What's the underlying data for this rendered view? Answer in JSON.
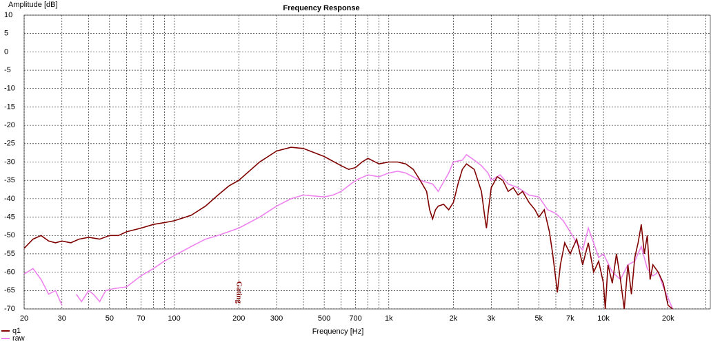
{
  "chart_data": {
    "type": "line",
    "title": "Frequency Response",
    "x_label": "Frequency [Hz]",
    "y_label": "Amplitude [dB]",
    "xscale": "log",
    "xlim": [
      20,
      31700
    ],
    "ylim": [
      -70,
      10
    ],
    "grid": true,
    "xticks": [
      20,
      30,
      50,
      70,
      100,
      200,
      300,
      500,
      700,
      {
        "value": 1000,
        "label": "1k"
      },
      {
        "value": 2000,
        "label": "2k"
      },
      {
        "value": 3000,
        "label": "3k"
      },
      {
        "value": 5000,
        "label": "5k"
      },
      {
        "value": 7000,
        "label": "7k"
      },
      {
        "value": 10000,
        "label": "10k"
      },
      {
        "value": 20000,
        "label": "20k"
      }
    ],
    "xgrid": [
      40,
      60,
      80,
      90,
      400,
      600,
      800,
      900,
      4000,
      6000,
      8000,
      9000,
      30000
    ],
    "yticks": [
      10,
      5,
      0,
      -5,
      -10,
      -15,
      -20,
      -25,
      -30,
      -35,
      -40,
      -45,
      -50,
      -55,
      -60,
      -65,
      -70
    ],
    "annotations": [
      {
        "text": "Gating",
        "x": 200
      }
    ],
    "legend": "bottom-left",
    "series": [
      {
        "name": "q1",
        "color": "#800000",
        "x": [
          20,
          22,
          24,
          26,
          28,
          30,
          33,
          36,
          40,
          45,
          50,
          55,
          60,
          70,
          80,
          90,
          100,
          120,
          140,
          160,
          180,
          200,
          250,
          300,
          350,
          400,
          500,
          600,
          650,
          700,
          750,
          800,
          900,
          1000,
          1100,
          1200,
          1300,
          1400,
          1500,
          1550,
          1600,
          1650,
          1700,
          1800,
          1900,
          2000,
          2100,
          2200,
          2300,
          2500,
          2700,
          2800,
          2850,
          2900,
          3000,
          3200,
          3400,
          3600,
          3800,
          4000,
          4200,
          4500,
          4800,
          5000,
          5300,
          5600,
          5800,
          6000,
          6100,
          6300,
          6600,
          7000,
          7500,
          8000,
          8500,
          9000,
          9500,
          10000,
          10200,
          10500,
          11000,
          11500,
          12000,
          12500,
          13000,
          13500,
          14000,
          14500,
          15000,
          15500,
          16000,
          16500,
          17000,
          18000,
          19000,
          20000,
          21000
        ],
        "values": [
          -53.5,
          -51,
          -50,
          -51.5,
          -52,
          -51.5,
          -52,
          -51,
          -50.5,
          -51,
          -50,
          -50,
          -49,
          -48,
          -47,
          -46.5,
          -46,
          -44.5,
          -42,
          -39,
          -36.5,
          -35,
          -30,
          -27,
          -26,
          -26.3,
          -28.5,
          -31,
          -32,
          -31.5,
          -30,
          -29,
          -30.5,
          -30,
          -30,
          -30.5,
          -32,
          -35,
          -38,
          -43,
          -45.5,
          -43,
          -42,
          -41.5,
          -43,
          -41,
          -36,
          -32,
          -30.5,
          -32,
          -38,
          -45,
          -48,
          -44,
          -37,
          -34,
          -35,
          -38,
          -37,
          -39,
          -38,
          -41,
          -43,
          -45,
          -43,
          -49,
          -55,
          -62,
          -65.5,
          -58,
          -52,
          -55,
          -51,
          -58,
          -52,
          -60,
          -57,
          -63,
          -70,
          -58,
          -63,
          -55,
          -62,
          -70,
          -58,
          -66,
          -56,
          -52,
          -47,
          -55,
          -50,
          -62,
          -58,
          -60,
          -63,
          -69,
          -70
        ]
      },
      {
        "name": "raw",
        "color": "#ee82ee",
        "x": [
          20,
          22,
          24,
          26,
          28,
          30,
          32,
          35,
          37,
          40,
          42,
          45,
          48,
          52,
          60,
          70,
          80,
          90,
          100,
          120,
          140,
          160,
          200,
          250,
          300,
          350,
          400,
          500,
          550,
          600,
          700,
          800,
          900,
          1000,
          1100,
          1200,
          1400,
          1600,
          1700,
          1900,
          2000,
          2200,
          2300,
          2500,
          2700,
          2900,
          3000,
          3300,
          3600,
          4000,
          4500,
          5000,
          5500,
          6000,
          6500,
          7000,
          7500,
          8000,
          8500,
          9000,
          9500,
          10000,
          11000,
          12000,
          13000,
          14000,
          15000,
          16000,
          17000,
          18000,
          19000,
          20000,
          21000
        ],
        "values": [
          -60.5,
          -59,
          -62,
          -66,
          -65,
          -69,
          null,
          -66,
          -68,
          -65,
          -66,
          -68,
          -65,
          -64.5,
          -64,
          -61,
          -59,
          -57,
          -55.5,
          -53,
          -51,
          -50,
          -48,
          -45,
          -42,
          -40,
          -39,
          -39.5,
          -39,
          -38,
          -35,
          -33.5,
          -34,
          -33,
          -32.5,
          -33,
          -35,
          -36,
          -38,
          -33,
          -30,
          -29.5,
          -28,
          -29.5,
          -31,
          -33,
          -35,
          -33.5,
          -36,
          -37,
          -39,
          -39.5,
          -43,
          -44,
          -46,
          -49,
          -52,
          -54,
          -48,
          -52,
          -56,
          -55,
          -60,
          -62,
          -58,
          -57,
          -53,
          -59,
          -61,
          -60,
          -64,
          -67,
          -70
        ]
      }
    ]
  }
}
